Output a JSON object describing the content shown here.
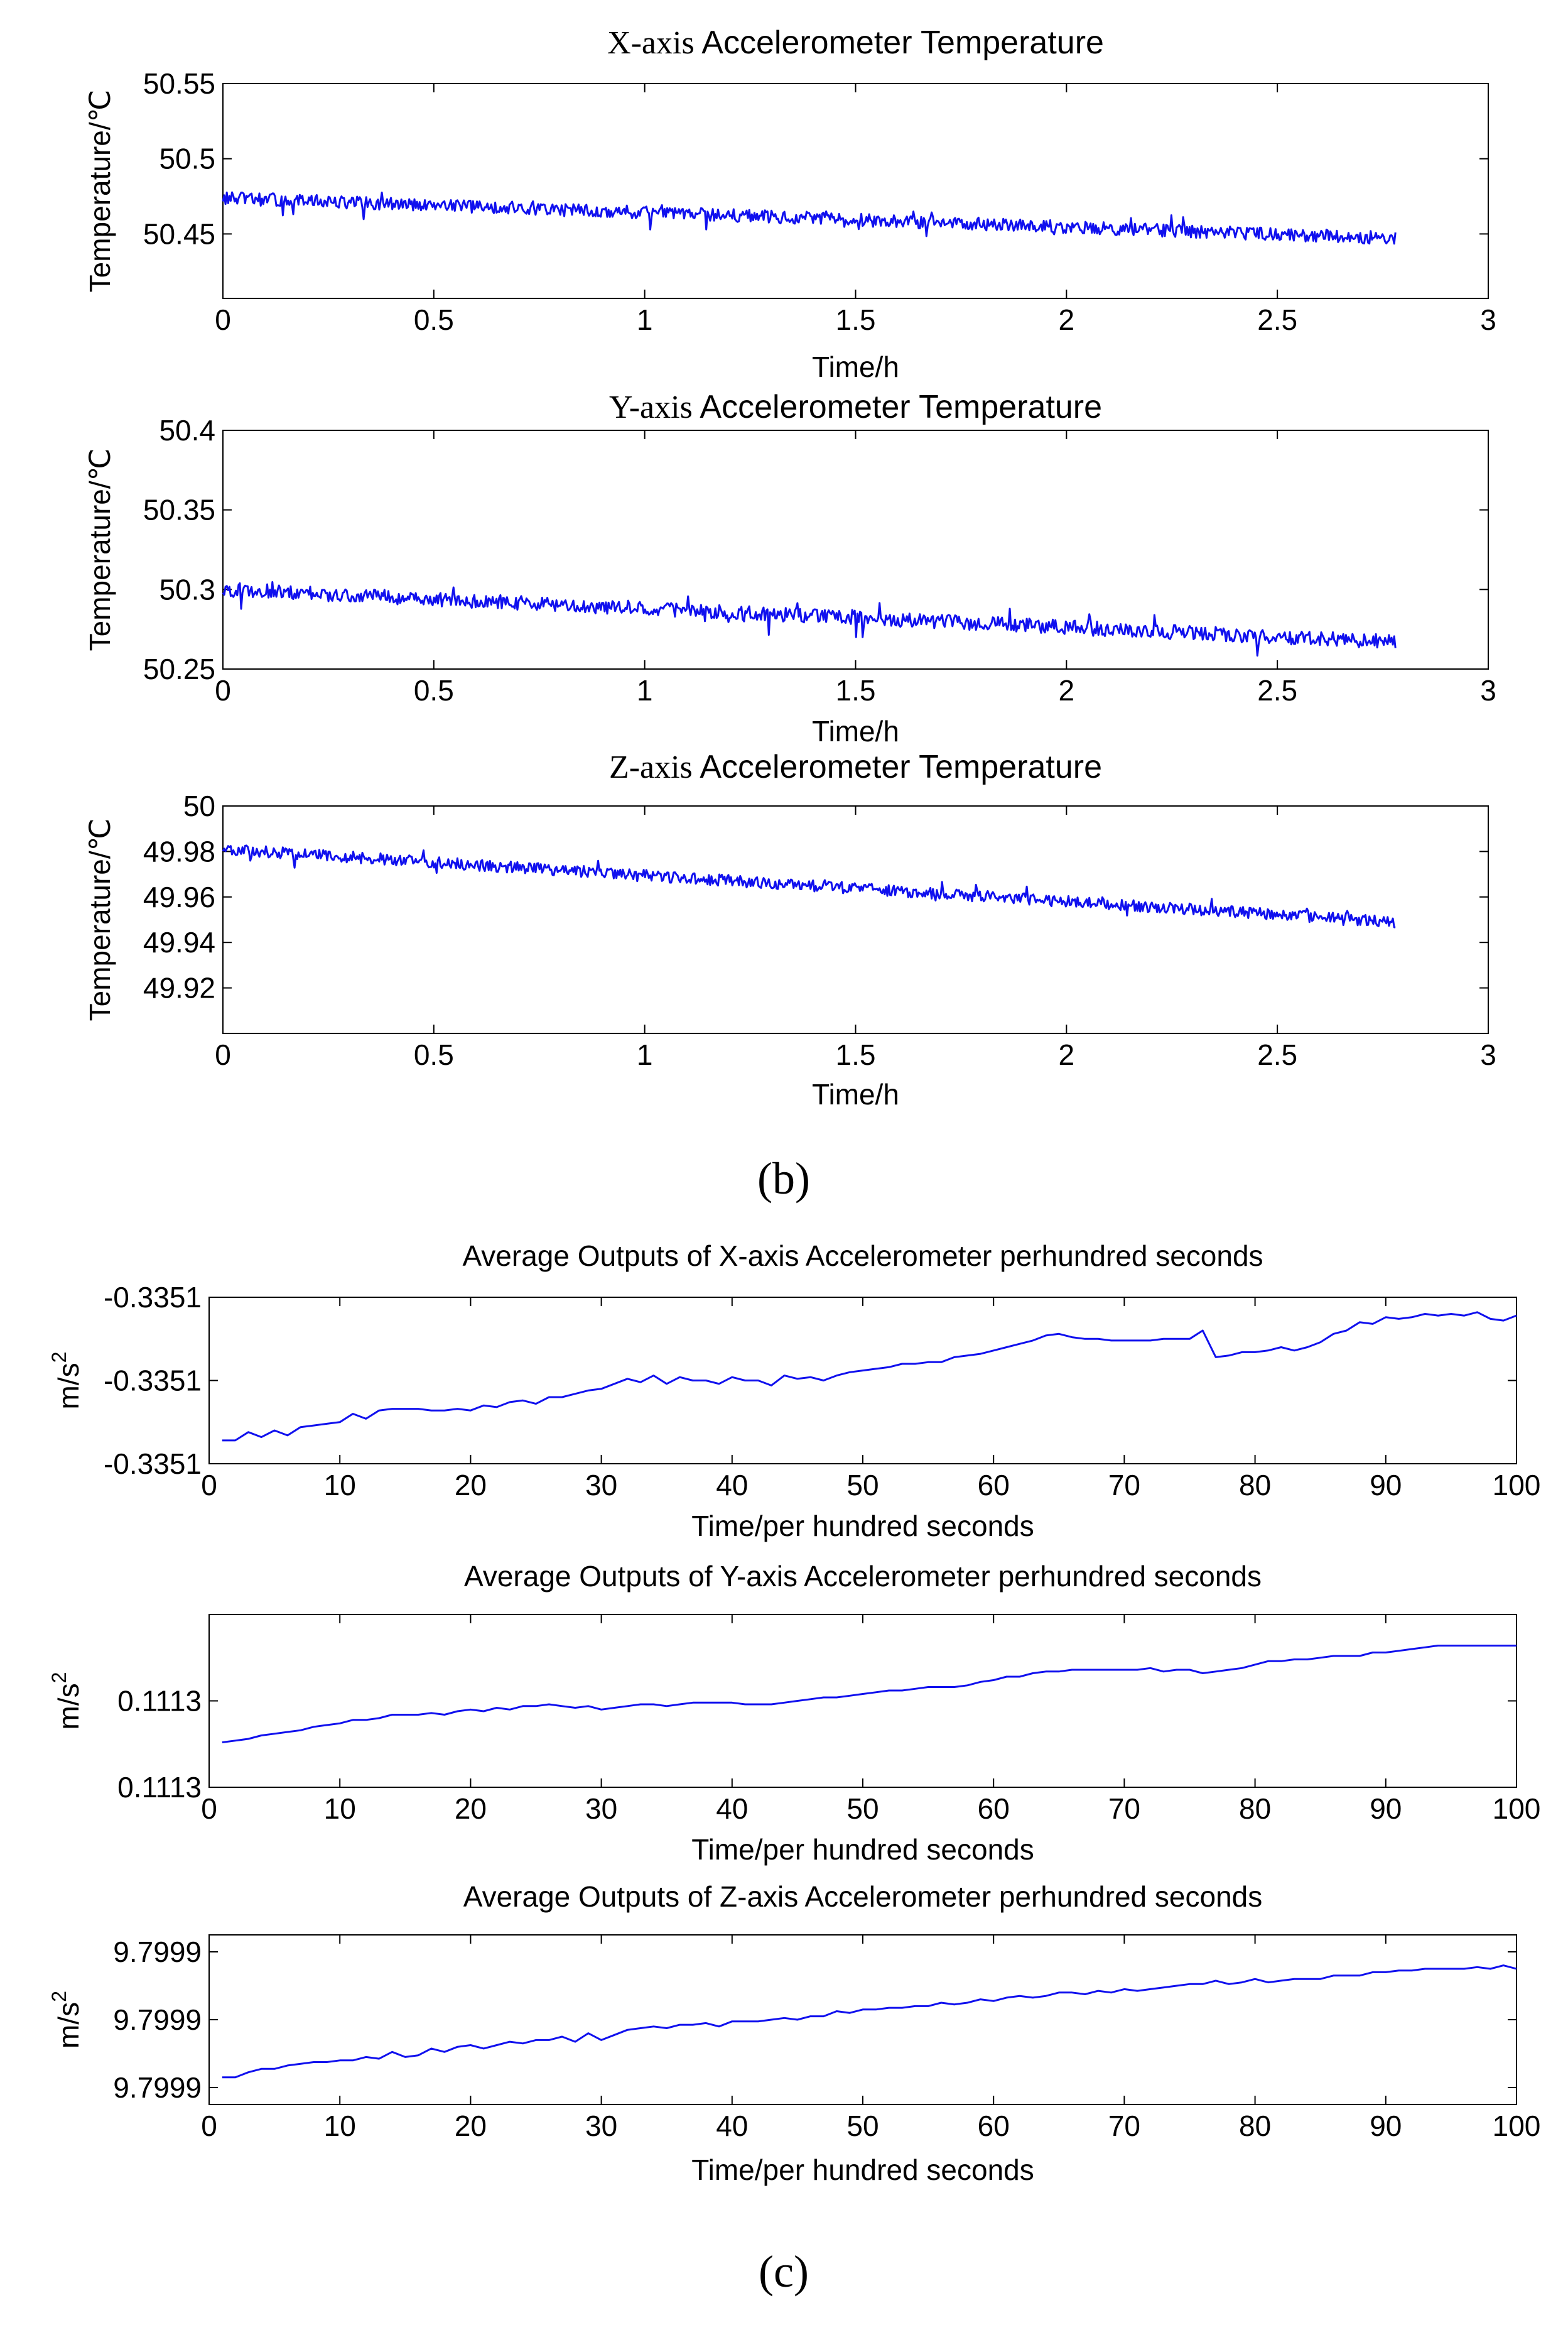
{
  "figure": {
    "panel_b_label": "(b)",
    "panel_c_label": "(c)"
  },
  "chart_data": [
    {
      "type": "line",
      "panel": "b",
      "title": "X-axis Accelerometer Temperature",
      "xlabel": "Time/h",
      "ylabel": "Temperature/℃",
      "xlim": [
        0,
        3
      ],
      "ylim": [
        50.4,
        50.55
      ],
      "xticks": [
        "0",
        "0.5",
        "1",
        "1.5",
        "2",
        "2.5",
        "3"
      ],
      "yticks": [
        "50.45",
        "50.5",
        "50.55"
      ],
      "color": "#1010ee",
      "series": [
        {
          "name": "X temperature",
          "start": 50.47,
          "end": 50.442,
          "noise": 0.0045,
          "x_end": 2.78
        }
      ]
    },
    {
      "type": "line",
      "panel": "b",
      "title": "Y-axis Accelerometer Temperature",
      "xlabel": "Time/h",
      "ylabel": "Temperature/℃",
      "xlim": [
        0,
        3
      ],
      "ylim": [
        50.25,
        50.4
      ],
      "xticks": [
        "0",
        "0.5",
        "1",
        "1.5",
        "2",
        "2.5",
        "3"
      ],
      "yticks": [
        "50.25",
        "50.3",
        "50.35",
        "50.4"
      ],
      "color": "#1010ee",
      "series": [
        {
          "name": "Y temperature",
          "start": 50.3,
          "end": 50.267,
          "noise": 0.0045,
          "x_end": 2.78
        }
      ]
    },
    {
      "type": "line",
      "panel": "b",
      "title": "Z-axis Accelerometer Temperature",
      "xlabel": "Time/h",
      "ylabel": "Temperature/℃",
      "xlim": [
        0,
        3
      ],
      "ylim": [
        49.9,
        50.0
      ],
      "xticks": [
        "0",
        "0.5",
        "1",
        "1.5",
        "2",
        "2.5",
        "3"
      ],
      "yticks": [
        "49.92",
        "49.94",
        "49.96",
        "49.98",
        "50"
      ],
      "color": "#1010ee",
      "series": [
        {
          "name": "Z temperature",
          "start": 49.981,
          "end": 49.949,
          "noise": 0.0025,
          "x_end": 2.78
        }
      ]
    },
    {
      "type": "line",
      "panel": "c",
      "title": "Average Outputs of X-axis Accelerometer perhundred seconds",
      "xlabel": "Time/per hundred seconds",
      "ylabel": "m/s",
      "ylabel_sup": "2",
      "xlim": [
        0,
        100
      ],
      "ylim": [
        0,
        1
      ],
      "xticks": [
        "0",
        "10",
        "20",
        "30",
        "40",
        "50",
        "60",
        "70",
        "80",
        "90",
        "100"
      ],
      "yticks": [
        "-0.3351",
        "-0.3351",
        "-0.3351"
      ],
      "color": "#1010ee",
      "series": [
        {
          "name": "X output",
          "x": [
            1,
            2,
            3,
            4,
            5,
            6,
            7,
            8,
            9,
            10,
            11,
            12,
            13,
            14,
            15,
            16,
            17,
            18,
            19,
            20,
            21,
            22,
            23,
            24,
            25,
            26,
            27,
            28,
            29,
            30,
            31,
            32,
            33,
            34,
            35,
            36,
            37,
            38,
            39,
            40,
            41,
            42,
            43,
            44,
            45,
            46,
            47,
            48,
            49,
            50,
            51,
            52,
            53,
            54,
            55,
            56,
            57,
            58,
            59,
            60,
            61,
            62,
            63,
            64,
            65,
            66,
            67,
            68,
            69,
            70,
            71,
            72,
            73,
            74,
            75,
            76,
            77,
            78,
            79,
            80,
            81,
            82,
            83,
            84,
            85,
            86,
            87,
            88,
            89,
            90,
            91,
            92,
            93,
            94,
            95,
            96,
            97,
            98,
            99,
            100
          ],
          "values": [
            0.14,
            0.14,
            0.19,
            0.16,
            0.2,
            0.17,
            0.22,
            0.23,
            0.24,
            0.25,
            0.3,
            0.27,
            0.32,
            0.33,
            0.33,
            0.33,
            0.32,
            0.32,
            0.33,
            0.32,
            0.35,
            0.34,
            0.37,
            0.38,
            0.36,
            0.4,
            0.4,
            0.42,
            0.44,
            0.45,
            0.48,
            0.51,
            0.49,
            0.53,
            0.48,
            0.52,
            0.5,
            0.5,
            0.48,
            0.52,
            0.5,
            0.5,
            0.47,
            0.53,
            0.51,
            0.52,
            0.5,
            0.53,
            0.55,
            0.56,
            0.57,
            0.58,
            0.6,
            0.6,
            0.61,
            0.61,
            0.64,
            0.65,
            0.66,
            0.68,
            0.7,
            0.72,
            0.74,
            0.77,
            0.78,
            0.76,
            0.75,
            0.75,
            0.74,
            0.74,
            0.74,
            0.74,
            0.75,
            0.75,
            0.75,
            0.8,
            0.64,
            0.65,
            0.67,
            0.67,
            0.68,
            0.7,
            0.68,
            0.7,
            0.73,
            0.78,
            0.8,
            0.85,
            0.84,
            0.88,
            0.87,
            0.88,
            0.9,
            0.89,
            0.9,
            0.89,
            0.91,
            0.87,
            0.86,
            0.89
          ]
        }
      ]
    },
    {
      "type": "line",
      "panel": "c",
      "title": "Average Outputs of Y-axis Accelerometer perhundred seconds",
      "xlabel": "Time/per hundred seconds",
      "ylabel": "m/s",
      "ylabel_sup": "2",
      "xlim": [
        0,
        100
      ],
      "ylim": [
        0,
        1
      ],
      "xticks": [
        "0",
        "10",
        "20",
        "30",
        "40",
        "50",
        "60",
        "70",
        "80",
        "90",
        "100"
      ],
      "yticks": [
        "0.1113",
        "0.1113"
      ],
      "color": "#1010ee",
      "series": [
        {
          "name": "Y output",
          "x": [
            1,
            2,
            3,
            4,
            5,
            6,
            7,
            8,
            9,
            10,
            11,
            12,
            13,
            14,
            15,
            16,
            17,
            18,
            19,
            20,
            21,
            22,
            23,
            24,
            25,
            26,
            27,
            28,
            29,
            30,
            31,
            32,
            33,
            34,
            35,
            36,
            37,
            38,
            39,
            40,
            41,
            42,
            43,
            44,
            45,
            46,
            47,
            48,
            49,
            50,
            51,
            52,
            53,
            54,
            55,
            56,
            57,
            58,
            59,
            60,
            61,
            62,
            63,
            64,
            65,
            66,
            67,
            68,
            69,
            70,
            71,
            72,
            73,
            74,
            75,
            76,
            77,
            78,
            79,
            80,
            81,
            82,
            83,
            84,
            85,
            86,
            87,
            88,
            89,
            90,
            91,
            92,
            93,
            94,
            95,
            96,
            97,
            98,
            99,
            100
          ],
          "values": [
            0.26,
            0.27,
            0.28,
            0.3,
            0.31,
            0.32,
            0.33,
            0.35,
            0.36,
            0.37,
            0.39,
            0.39,
            0.4,
            0.42,
            0.42,
            0.42,
            0.43,
            0.42,
            0.44,
            0.45,
            0.44,
            0.46,
            0.45,
            0.47,
            0.47,
            0.48,
            0.47,
            0.46,
            0.47,
            0.45,
            0.46,
            0.47,
            0.48,
            0.48,
            0.47,
            0.48,
            0.49,
            0.49,
            0.49,
            0.49,
            0.48,
            0.48,
            0.48,
            0.49,
            0.5,
            0.51,
            0.52,
            0.52,
            0.53,
            0.54,
            0.55,
            0.56,
            0.56,
            0.57,
            0.58,
            0.58,
            0.58,
            0.59,
            0.61,
            0.62,
            0.64,
            0.64,
            0.66,
            0.67,
            0.67,
            0.68,
            0.68,
            0.68,
            0.68,
            0.68,
            0.68,
            0.69,
            0.67,
            0.68,
            0.68,
            0.66,
            0.67,
            0.68,
            0.69,
            0.71,
            0.73,
            0.73,
            0.74,
            0.74,
            0.75,
            0.76,
            0.76,
            0.76,
            0.78,
            0.78,
            0.79,
            0.8,
            0.81,
            0.82,
            0.82,
            0.82,
            0.82,
            0.82,
            0.82,
            0.82
          ]
        }
      ]
    },
    {
      "type": "line",
      "panel": "c",
      "title": "Average Outputs of Z-axis Accelerometer perhundred seconds",
      "xlabel": "Time/per hundred seconds",
      "ylabel": "m/s",
      "ylabel_sup": "2",
      "xlim": [
        0,
        100
      ],
      "ylim": [
        0,
        1
      ],
      "xticks": [
        "0",
        "10",
        "20",
        "30",
        "40",
        "50",
        "60",
        "70",
        "80",
        "90",
        "100"
      ],
      "yticks": [
        "9.7999",
        "9.7999",
        "9.7999"
      ],
      "color": "#1010ee",
      "series": [
        {
          "name": "Z output",
          "x": [
            1,
            2,
            3,
            4,
            5,
            6,
            7,
            8,
            9,
            10,
            11,
            12,
            13,
            14,
            15,
            16,
            17,
            18,
            19,
            20,
            21,
            22,
            23,
            24,
            25,
            26,
            27,
            28,
            29,
            30,
            31,
            32,
            33,
            34,
            35,
            36,
            37,
            38,
            39,
            40,
            41,
            42,
            43,
            44,
            45,
            46,
            47,
            48,
            49,
            50,
            51,
            52,
            53,
            54,
            55,
            56,
            57,
            58,
            59,
            60,
            61,
            62,
            63,
            64,
            65,
            66,
            67,
            68,
            69,
            70,
            71,
            72,
            73,
            74,
            75,
            76,
            77,
            78,
            79,
            80,
            81,
            82,
            83,
            84,
            85,
            86,
            87,
            88,
            89,
            90,
            91,
            92,
            93,
            94,
            95,
            96,
            97,
            98,
            99,
            100
          ],
          "values": [
            0.16,
            0.16,
            0.19,
            0.21,
            0.21,
            0.23,
            0.24,
            0.25,
            0.25,
            0.26,
            0.26,
            0.28,
            0.27,
            0.31,
            0.28,
            0.29,
            0.33,
            0.31,
            0.34,
            0.35,
            0.33,
            0.35,
            0.37,
            0.36,
            0.38,
            0.38,
            0.4,
            0.37,
            0.42,
            0.38,
            0.41,
            0.44,
            0.45,
            0.46,
            0.45,
            0.47,
            0.47,
            0.48,
            0.46,
            0.49,
            0.49,
            0.49,
            0.5,
            0.51,
            0.5,
            0.52,
            0.52,
            0.55,
            0.54,
            0.56,
            0.56,
            0.57,
            0.57,
            0.58,
            0.58,
            0.6,
            0.59,
            0.6,
            0.62,
            0.61,
            0.63,
            0.64,
            0.63,
            0.64,
            0.66,
            0.66,
            0.65,
            0.67,
            0.66,
            0.68,
            0.67,
            0.68,
            0.69,
            0.7,
            0.71,
            0.71,
            0.73,
            0.71,
            0.72,
            0.74,
            0.72,
            0.73,
            0.74,
            0.74,
            0.74,
            0.76,
            0.76,
            0.76,
            0.78,
            0.78,
            0.79,
            0.79,
            0.8,
            0.8,
            0.8,
            0.8,
            0.81,
            0.8,
            0.82,
            0.8
          ]
        }
      ]
    }
  ]
}
